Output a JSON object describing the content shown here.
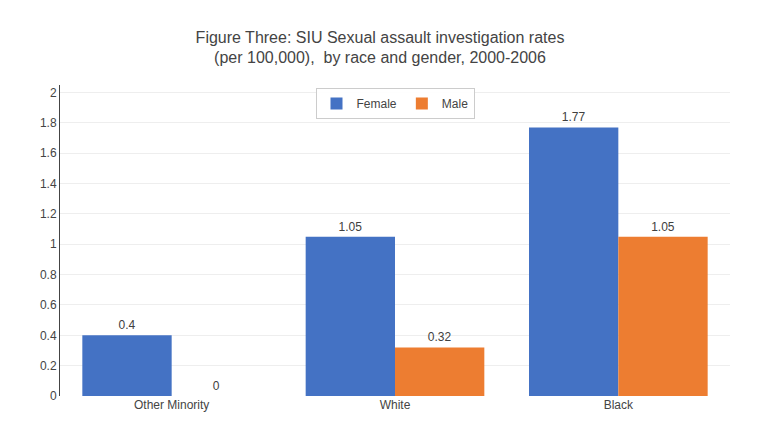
{
  "chart_data": {
    "type": "bar",
    "title": "Figure Three: SIU Sexual assault investigation rates\n(per 100,000),  by race and gender, 2000-2006",
    "categories": [
      "Other Minority",
      "White",
      "Black"
    ],
    "series": [
      {
        "name": "Female",
        "color": "#4472C4",
        "values": [
          0.4,
          1.05,
          1.77
        ]
      },
      {
        "name": "Male",
        "color": "#ED7D31",
        "values": [
          0,
          0.32,
          1.05
        ]
      }
    ],
    "ylim": [
      0,
      2.05
    ],
    "yticks": [
      0,
      0.2,
      0.4,
      0.6,
      0.8,
      1,
      1.2,
      1.4,
      1.6,
      1.8,
      2
    ],
    "grid": true,
    "legend": "upper center",
    "data_labels": true
  }
}
